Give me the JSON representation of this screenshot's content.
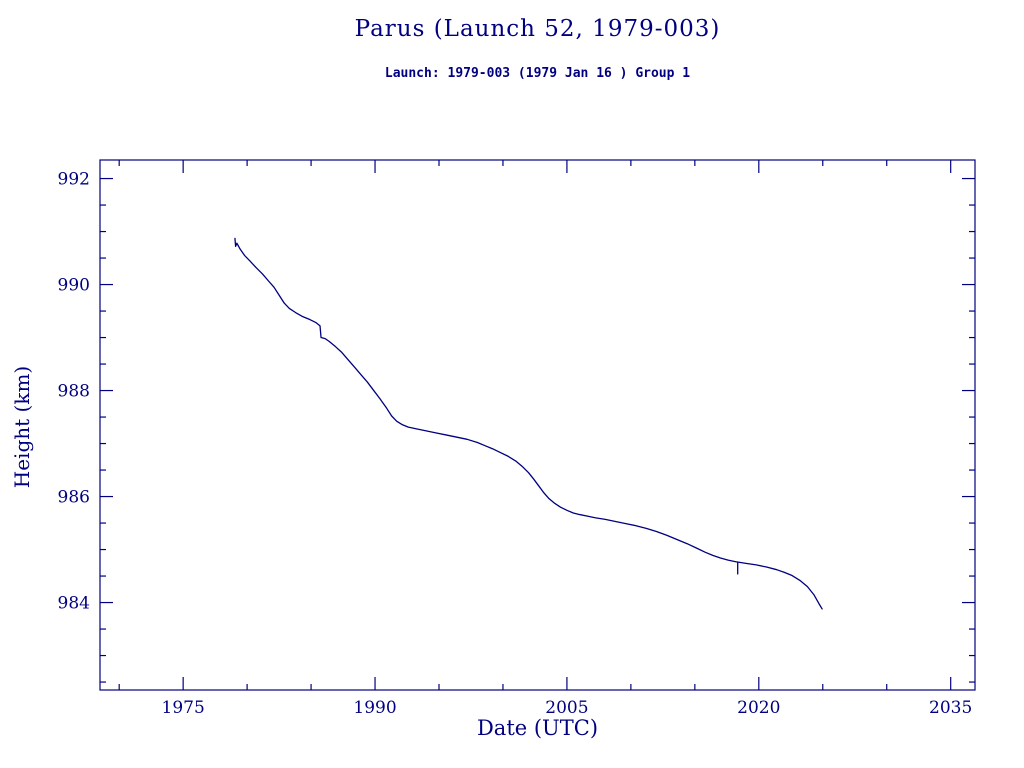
{
  "page": {
    "background": "#ffffff",
    "accent": "#000080"
  },
  "chart_data": {
    "type": "line",
    "title": "Parus (Launch 52, 1979-003)",
    "subtitle": "Launch: 1979-003  (1979 Jan 16 )  Group 1",
    "xlabel": "Date (UTC)",
    "ylabel": "Height (km)",
    "xlim": [
      1968.5,
      2036.9
    ],
    "ylim": [
      982.35,
      992.35
    ],
    "x_major_ticks": [
      1975,
      1990,
      2005,
      2020,
      2035
    ],
    "x_minor_step": 5,
    "y_major_ticks": [
      984,
      986,
      988,
      990,
      992
    ],
    "y_minor_step": 0.5,
    "line_color": "#000080",
    "grid": false,
    "legend": "none",
    "series": [
      {
        "name": "height-km",
        "points": [
          [
            1979.05,
            990.87
          ],
          [
            1979.1,
            990.72
          ],
          [
            1979.2,
            990.78
          ],
          [
            1979.45,
            990.67
          ],
          [
            1979.8,
            990.55
          ],
          [
            1980.2,
            990.45
          ],
          [
            1980.7,
            990.32
          ],
          [
            1981.2,
            990.2
          ],
          [
            1981.7,
            990.06
          ],
          [
            1982.1,
            989.95
          ],
          [
            1982.5,
            989.8
          ],
          [
            1982.9,
            989.65
          ],
          [
            1983.3,
            989.55
          ],
          [
            1983.8,
            989.47
          ],
          [
            1984.3,
            989.4
          ],
          [
            1984.9,
            989.34
          ],
          [
            1985.4,
            989.28
          ],
          [
            1985.7,
            989.22
          ],
          [
            1985.78,
            989.0
          ],
          [
            1986.1,
            988.98
          ],
          [
            1986.4,
            988.93
          ],
          [
            1986.9,
            988.83
          ],
          [
            1987.4,
            988.72
          ],
          [
            1987.9,
            988.58
          ],
          [
            1988.4,
            988.44
          ],
          [
            1988.9,
            988.3
          ],
          [
            1989.4,
            988.16
          ],
          [
            1989.9,
            988.0
          ],
          [
            1990.4,
            987.84
          ],
          [
            1990.9,
            987.67
          ],
          [
            1991.3,
            987.52
          ],
          [
            1991.7,
            987.42
          ],
          [
            1992.1,
            987.36
          ],
          [
            1992.6,
            987.31
          ],
          [
            1993.2,
            987.28
          ],
          [
            1994,
            987.24
          ],
          [
            1994.8,
            987.2
          ],
          [
            1995.6,
            987.16
          ],
          [
            1996.4,
            987.12
          ],
          [
            1997.2,
            987.08
          ],
          [
            1998,
            987.02
          ],
          [
            1998.6,
            986.96
          ],
          [
            1999.2,
            986.9
          ],
          [
            1999.8,
            986.83
          ],
          [
            2000.4,
            986.76
          ],
          [
            2001,
            986.67
          ],
          [
            2001.5,
            986.57
          ],
          [
            2002,
            986.45
          ],
          [
            2002.4,
            986.33
          ],
          [
            2002.8,
            986.2
          ],
          [
            2003.2,
            986.07
          ],
          [
            2003.6,
            985.96
          ],
          [
            2004,
            985.88
          ],
          [
            2004.5,
            985.8
          ],
          [
            2005,
            985.74
          ],
          [
            2005.5,
            985.69
          ],
          [
            2006,
            985.66
          ],
          [
            2006.6,
            985.63
          ],
          [
            2007.2,
            985.6
          ],
          [
            2008,
            985.57
          ],
          [
            2008.8,
            985.53
          ],
          [
            2009.6,
            985.49
          ],
          [
            2010.4,
            985.45
          ],
          [
            2011.2,
            985.4
          ],
          [
            2012,
            985.34
          ],
          [
            2012.8,
            985.27
          ],
          [
            2013.6,
            985.19
          ],
          [
            2014.4,
            985.11
          ],
          [
            2015.2,
            985.02
          ],
          [
            2015.8,
            984.95
          ],
          [
            2016.4,
            984.89
          ],
          [
            2017,
            984.84
          ],
          [
            2017.6,
            984.8
          ],
          [
            2018.2,
            984.77
          ],
          [
            2019,
            984.74
          ],
          [
            2019.8,
            984.71
          ],
          [
            2020.6,
            984.67
          ],
          [
            2021.4,
            984.62
          ],
          [
            2022,
            984.57
          ],
          [
            2022.6,
            984.51
          ],
          [
            2023.2,
            984.42
          ],
          [
            2023.8,
            984.3
          ],
          [
            2024.3,
            984.15
          ],
          [
            2024.7,
            983.98
          ],
          [
            2024.95,
            983.88
          ]
        ]
      },
      {
        "name": "glitch-mark",
        "points": [
          [
            2018.35,
            984.76
          ],
          [
            2018.35,
            984.54
          ]
        ]
      }
    ]
  }
}
